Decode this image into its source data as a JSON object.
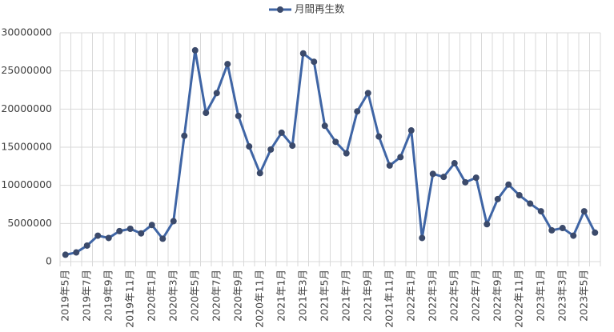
{
  "chart_data": {
    "type": "line",
    "categories": [
      "2019年5月",
      null,
      "2019年7月",
      null,
      "2019年9月",
      null,
      "2019年11月",
      null,
      "2020年1月",
      null,
      "2020年3月",
      null,
      "2020年5月",
      null,
      "2020年7月",
      null,
      "2020年9月",
      null,
      "2020年11月",
      null,
      "2021年1月",
      null,
      "2021年3月",
      null,
      "2021年5月",
      null,
      "2021年7月",
      null,
      "2021年9月",
      null,
      "2021年11月",
      null,
      "2022年1月",
      null,
      "2022年3月",
      null,
      "2022年5月",
      null,
      "2022年7月",
      null,
      "2022年9月",
      null,
      "2022年11月",
      null,
      "2023年1月",
      null,
      "2023年3月",
      null,
      "2023年5月",
      null
    ],
    "series": [
      {
        "name": "月間再生数",
        "color": "#3f65a5",
        "marker_color": "#3b4a6b",
        "values": [
          900000,
          1200000,
          2100000,
          3400000,
          3100000,
          4000000,
          4300000,
          3700000,
          4800000,
          3000000,
          5300000,
          16500000,
          27700000,
          19500000,
          22100000,
          25900000,
          19100000,
          15100000,
          11600000,
          14700000,
          16900000,
          15200000,
          27300000,
          26200000,
          17800000,
          15700000,
          14200000,
          19700000,
          22100000,
          16400000,
          12600000,
          13700000,
          17200000,
          3100000,
          11500000,
          11100000,
          12900000,
          10400000,
          11000000,
          4900000,
          8200000,
          10100000,
          8700000,
          7600000,
          6600000,
          4100000,
          4400000,
          3400000,
          6600000,
          3800000
        ]
      }
    ],
    "ylim": [
      0,
      30000000
    ],
    "yticks": [
      0,
      5000000,
      10000000,
      15000000,
      20000000,
      25000000,
      30000000
    ],
    "grid": true,
    "legend": "top"
  }
}
